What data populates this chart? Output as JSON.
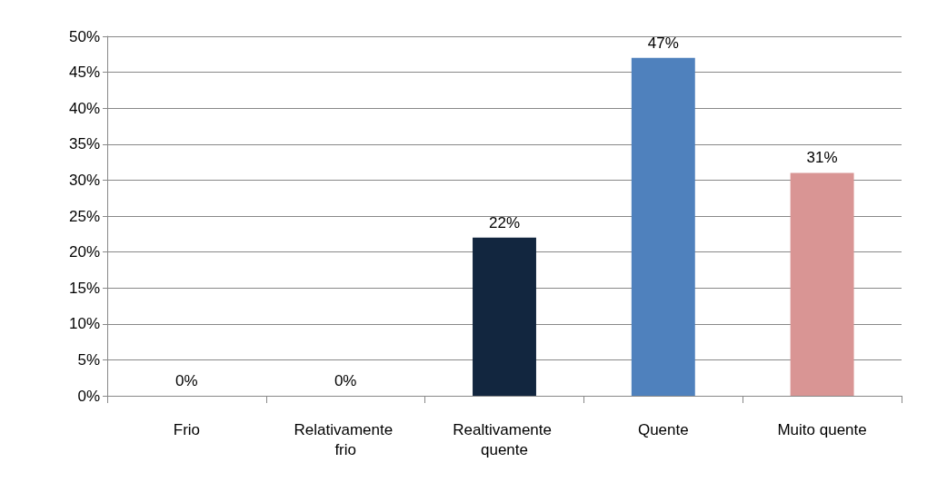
{
  "chart_data": {
    "type": "bar",
    "categories": [
      "Frio",
      "Relativamente frio",
      "Realtivamente quente",
      "Quente",
      "Muito quente"
    ],
    "values": [
      0,
      0,
      22,
      47,
      31
    ],
    "colors": [
      "#1f3864",
      "#1f3864",
      "#12263f",
      "#4f81bd",
      "#d99594"
    ],
    "value_labels": [
      "0%",
      "0%",
      "22%",
      "47%",
      "31%"
    ],
    "ylim": [
      0,
      50
    ],
    "yticks": [
      {
        "value": 0,
        "label": "0%"
      },
      {
        "value": 5,
        "label": "5%"
      },
      {
        "value": 10,
        "label": "10%"
      },
      {
        "value": 15,
        "label": "15%"
      },
      {
        "value": 20,
        "label": "20%"
      },
      {
        "value": 25,
        "label": "25%"
      },
      {
        "value": 30,
        "label": "30%"
      },
      {
        "value": 35,
        "label": "35%"
      },
      {
        "value": 40,
        "label": "40%"
      },
      {
        "value": 45,
        "label": "45%"
      },
      {
        "value": 50,
        "label": "50%"
      }
    ],
    "grid": "y"
  }
}
